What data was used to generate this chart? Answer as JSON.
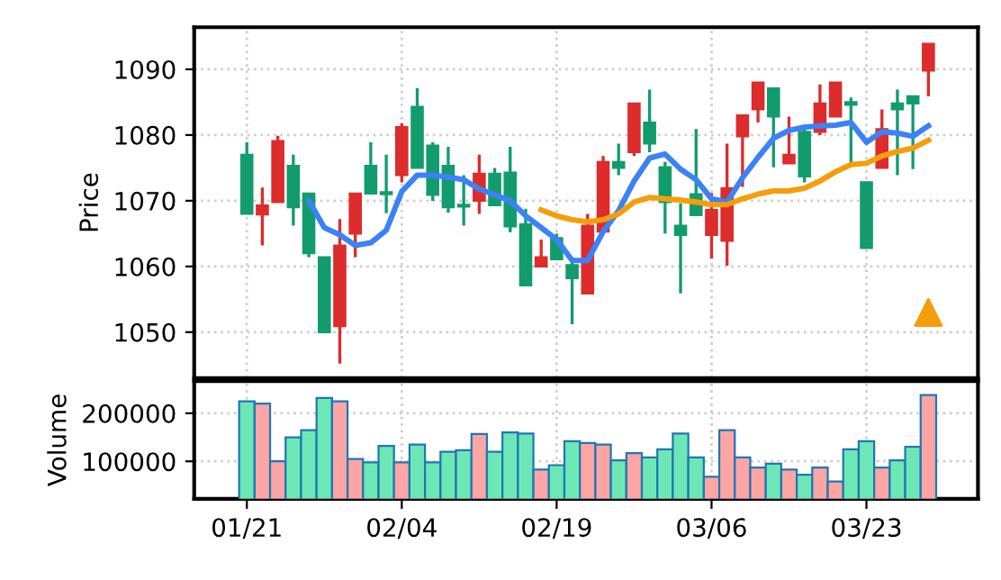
{
  "chart_data": [
    {
      "type": "candlestick",
      "ylabel": "Price",
      "ylim": [
        1043,
        1096.4
      ],
      "yticks": [
        1050,
        1060,
        1070,
        1080,
        1090
      ],
      "grid": true,
      "tick_labels": "y",
      "categories": [
        null,
        null,
        null,
        null,
        null,
        null,
        null,
        null,
        null,
        null,
        null,
        null,
        null,
        null,
        null,
        null,
        null,
        null,
        null,
        null,
        null,
        null,
        null,
        null,
        null,
        null,
        null,
        null,
        null,
        null,
        null,
        null,
        null,
        null,
        null,
        null,
        null,
        null,
        null,
        null,
        null,
        null,
        null,
        null,
        null
      ],
      "ohlc": [
        [
          1068,
          1078.9,
          1068,
          1077
        ],
        [
          1069.3,
          1072,
          1063.2,
          1067.9
        ],
        [
          1079.1,
          1079.9,
          1069.8,
          1069.8
        ],
        [
          1069,
          1077,
          1066.2,
          1075.3
        ],
        [
          1062,
          1071.1,
          1061.4,
          1071.1
        ],
        [
          1050,
          1061.4,
          1050,
          1061.4
        ],
        [
          1063.2,
          1067.2,
          1045.2,
          1050.9
        ],
        [
          1071.1,
          1071.1,
          1061.4,
          1065
        ],
        [
          1071.1,
          1078.9,
          1071.1,
          1075.3
        ],
        [
          1071,
          1077,
          1068.1,
          1071.3
        ],
        [
          1081.2,
          1081.8,
          1072.8,
          1073.9
        ],
        [
          1075,
          1087.1,
          1075,
          1084.3
        ],
        [
          1070.9,
          1078.9,
          1070,
          1078.4
        ],
        [
          1069,
          1078.2,
          1068.2,
          1075.3
        ],
        [
          1069.1,
          1073.9,
          1066.2,
          1069.4
        ],
        [
          1074.1,
          1077,
          1068,
          1070
        ],
        [
          1069.3,
          1075,
          1069.3,
          1074.1
        ],
        [
          1066.1,
          1078.2,
          1065.2,
          1074.3
        ],
        [
          1057.1,
          1068.8,
          1057.1,
          1066.4
        ],
        [
          1061.4,
          1064.1,
          1060,
          1060
        ],
        [
          1061.1,
          1065,
          1061.1,
          1064.3
        ],
        [
          1058.2,
          1061.4,
          1051.2,
          1060.2
        ],
        [
          1066.2,
          1068,
          1055.9,
          1055.9
        ],
        [
          1075.9,
          1076.8,
          1065.3,
          1065.3
        ],
        [
          1075,
          1078.7,
          1073.9,
          1075.9
        ],
        [
          1084.8,
          1084.8,
          1076.8,
          1077.4
        ],
        [
          1078.7,
          1086.9,
          1077.4,
          1081.9
        ],
        [
          1069.8,
          1075.9,
          1065,
          1075.1
        ],
        [
          1064.8,
          1069.6,
          1055.9,
          1066.2
        ],
        [
          1067.8,
          1080.9,
          1067.8,
          1071
        ],
        [
          1068.6,
          1071.2,
          1061.2,
          1064.8
        ],
        [
          1071.9,
          1078.7,
          1060.1,
          1063.9
        ],
        [
          1083,
          1083,
          1072.1,
          1079.8
        ],
        [
          1088,
          1088,
          1081.9,
          1083.9
        ],
        [
          1082.8,
          1087.1,
          1075.1,
          1087.1
        ],
        [
          1077,
          1082.8,
          1075.7,
          1075.7
        ],
        [
          1073.7,
          1081.6,
          1072.8,
          1080.5
        ],
        [
          1084.8,
          1087.7,
          1080,
          1080.5
        ],
        [
          1088,
          1088,
          1082.8,
          1082.8
        ],
        [
          1084.6,
          1085.7,
          1075.7,
          1085
        ],
        [
          1062.8,
          1072.8,
          1062.8,
          1072.8
        ],
        [
          1080.9,
          1083.9,
          1075,
          1075
        ],
        [
          1083.9,
          1086.9,
          1073.9,
          1084.8
        ],
        [
          1084.8,
          1085.9,
          1074.8,
          1085.9
        ],
        [
          1093.9,
          1093.9,
          1085.9,
          1089.8
        ]
      ],
      "colors": [
        "#129c6e",
        "#dc2c2c",
        "#dc2c2c",
        "#129c6e",
        "#129c6e",
        "#129c6e",
        "#dc2c2c",
        "#dc2c2c",
        "#129c6e",
        "#129c6e",
        "#dc2c2c",
        "#129c6e",
        "#129c6e",
        "#129c6e",
        "#129c6e",
        "#dc2c2c",
        "#129c6e",
        "#129c6e",
        "#129c6e",
        "#dc2c2c",
        "#129c6e",
        "#129c6e",
        "#dc2c2c",
        "#dc2c2c",
        "#129c6e",
        "#dc2c2c",
        "#129c6e",
        "#129c6e",
        "#129c6e",
        "#129c6e",
        "#dc2c2c",
        "#dc2c2c",
        "#dc2c2c",
        "#dc2c2c",
        "#129c6e",
        "#dc2c2c",
        "#129c6e",
        "#dc2c2c",
        "#dc2c2c",
        "#129c6e",
        "#129c6e",
        "#dc2c2c",
        "#129c6e",
        "#129c6e",
        "#dc2c2c"
      ],
      "series": [
        {
          "type": "line",
          "color": "#3b82f6",
          "values": [
            null,
            null,
            null,
            null,
            1070,
            1065.9,
            1064.8,
            1063.2,
            1063.6,
            1065.5,
            1071.4,
            1073.9,
            1073.9,
            1073.6,
            1073.2,
            1071.8,
            1070.9,
            1070,
            1067.7,
            1065.9,
            1064.1,
            1060.9,
            1060.9,
            1065.3,
            1068.5,
            1073,
            1076.5,
            1077.1,
            1074.8,
            1073.2,
            1070.3,
            1069.8,
            1073.5,
            1076.6,
            1079.5,
            1080.7,
            1081.2,
            1081.4,
            1081.5,
            1081.9,
            1078.9,
            1080.5,
            1080.3,
            1079.8,
            1081.4
          ]
        },
        {
          "type": "line",
          "color": "#f59e0b",
          "values": [
            null,
            null,
            null,
            null,
            null,
            null,
            null,
            null,
            null,
            null,
            null,
            null,
            null,
            null,
            null,
            null,
            null,
            null,
            null,
            1068.6,
            1067.7,
            1067.1,
            1066.8,
            1067.1,
            1068,
            1069.8,
            1070.5,
            1070.3,
            1070.1,
            1069.8,
            1069.4,
            1069.4,
            1070.3,
            1071,
            1071.5,
            1071.5,
            1071.9,
            1073,
            1074.4,
            1075.5,
            1075.7,
            1076.8,
            1077.5,
            1078,
            1079.2
          ]
        },
        {
          "type": "scatter",
          "marker": "triangle",
          "color": "#f59e0b",
          "values": [
            null,
            null,
            null,
            null,
            null,
            null,
            null,
            null,
            null,
            null,
            null,
            null,
            null,
            null,
            null,
            null,
            null,
            null,
            null,
            null,
            null,
            null,
            null,
            null,
            null,
            null,
            null,
            null,
            null,
            null,
            null,
            null,
            null,
            null,
            null,
            null,
            null,
            null,
            null,
            null,
            null,
            null,
            null,
            null,
            1053
          ]
        }
      ]
    },
    {
      "type": "bar",
      "ylabel": "Volume",
      "ylim": [
        22000,
        267000
      ],
      "yticks": [
        100000,
        200000
      ],
      "grid": true,
      "categories": [
        "01/21",
        null,
        null,
        null,
        null,
        null,
        null,
        null,
        null,
        null,
        "02/04",
        null,
        null,
        null,
        null,
        null,
        null,
        null,
        null,
        null,
        "02/19",
        null,
        null,
        null,
        null,
        null,
        null,
        null,
        null,
        null,
        "03/06",
        null,
        null,
        null,
        null,
        null,
        null,
        null,
        null,
        null,
        "03/23",
        null,
        null,
        null,
        null
      ],
      "values": [
        225000,
        220000,
        100000,
        150000,
        165000,
        232000,
        225000,
        105000,
        98000,
        132000,
        98000,
        135000,
        98000,
        120000,
        123000,
        157000,
        120000,
        160000,
        158000,
        83000,
        92000,
        142000,
        138000,
        135000,
        102000,
        117000,
        108000,
        125000,
        158000,
        108000,
        68000,
        165000,
        108000,
        87000,
        95000,
        83000,
        72000,
        87000,
        58000,
        125000,
        142000,
        87000,
        102000,
        130000,
        238000
      ],
      "colors": [
        "#6ee7b7",
        "#fca5a5",
        "#fca5a5",
        "#6ee7b7",
        "#6ee7b7",
        "#6ee7b7",
        "#fca5a5",
        "#fca5a5",
        "#6ee7b7",
        "#6ee7b7",
        "#fca5a5",
        "#6ee7b7",
        "#6ee7b7",
        "#6ee7b7",
        "#6ee7b7",
        "#fca5a5",
        "#6ee7b7",
        "#6ee7b7",
        "#6ee7b7",
        "#fca5a5",
        "#6ee7b7",
        "#6ee7b7",
        "#fca5a5",
        "#fca5a5",
        "#6ee7b7",
        "#fca5a5",
        "#6ee7b7",
        "#6ee7b7",
        "#6ee7b7",
        "#6ee7b7",
        "#fca5a5",
        "#fca5a5",
        "#fca5a5",
        "#fca5a5",
        "#6ee7b7",
        "#fca5a5",
        "#6ee7b7",
        "#fca5a5",
        "#fca5a5",
        "#6ee7b7",
        "#6ee7b7",
        "#fca5a5",
        "#6ee7b7",
        "#6ee7b7",
        "#fca5a5"
      ]
    }
  ]
}
